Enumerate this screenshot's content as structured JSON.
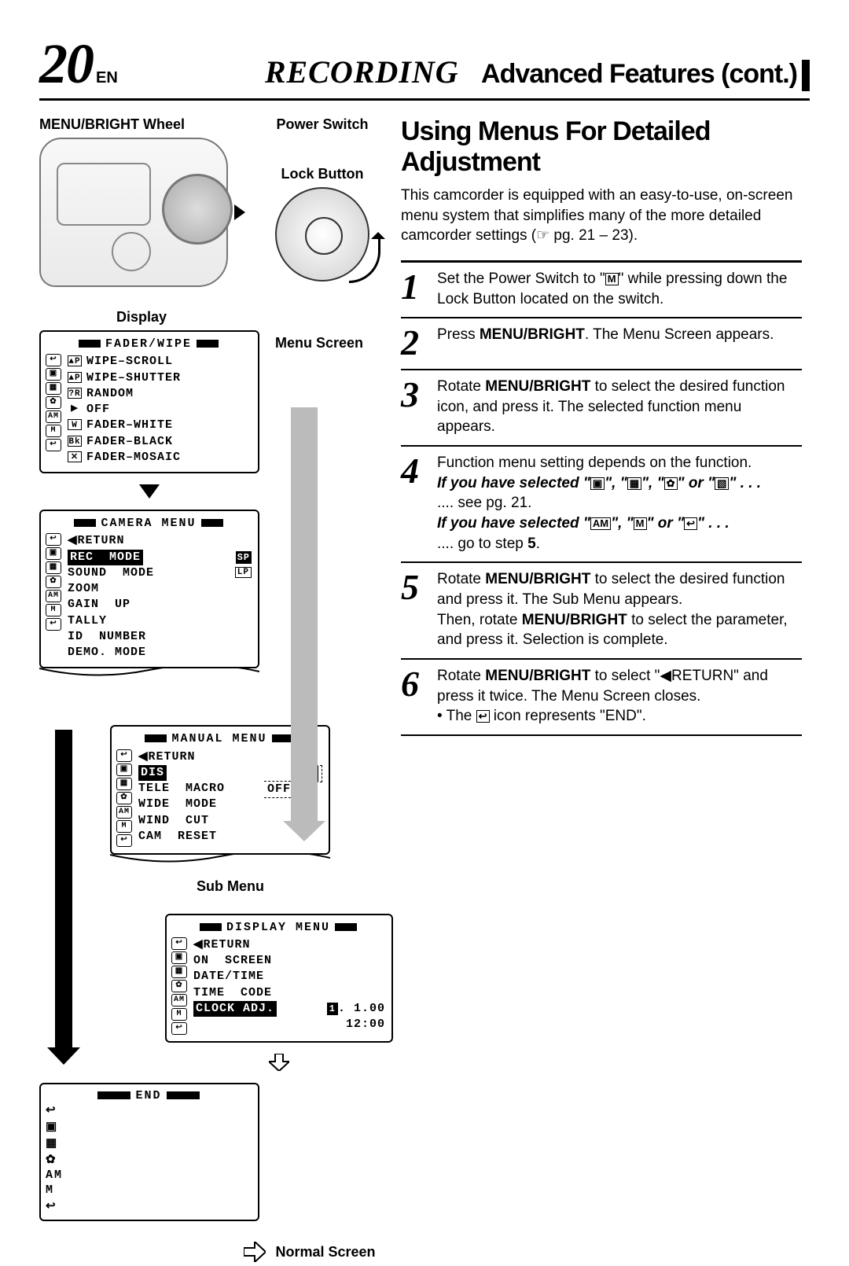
{
  "header": {
    "page_number": "20",
    "lang": "EN",
    "rec": "RECORDING",
    "subtitle": "Advanced Features (cont.)"
  },
  "left": {
    "labels": {
      "menu_bright_wheel": "MENU/BRIGHT Wheel",
      "power_switch": "Power Switch",
      "lock_button": "Lock Button",
      "display": "Display",
      "menu_screen": "Menu Screen",
      "sub_menu": "Sub Menu",
      "normal_screen": "Normal Screen"
    },
    "fader_menu": {
      "title": "FADER/WIPE",
      "items": [
        {
          "glyph": "▲P",
          "label": "WIPE–SCROLL"
        },
        {
          "glyph": "▲P",
          "label": "WIPE–SHUTTER"
        },
        {
          "glyph": "?R",
          "label": "RANDOM"
        },
        {
          "glyph": "▶",
          "label": "OFF",
          "noborder": true
        },
        {
          "glyph": "W",
          "label": "FADER–WHITE"
        },
        {
          "glyph": "Bk",
          "label": "FADER–BLACK"
        },
        {
          "glyph": "✕",
          "label": "FADER–MOSAIC"
        }
      ]
    },
    "camera_menu": {
      "title": "CAMERA  MENU",
      "return": "◀RETURN",
      "items": [
        {
          "label": "REC  MODE",
          "selected": true,
          "val1": "SP",
          "val2": ""
        },
        {
          "label": "SOUND  MODE",
          "val1": "",
          "val2": "LP"
        },
        {
          "label": "ZOOM"
        },
        {
          "label": "GAIN  UP"
        },
        {
          "label": "TALLY"
        },
        {
          "label": "ID  NUMBER"
        },
        {
          "label": "DEMO. MODE"
        }
      ]
    },
    "manual_menu": {
      "title": "MANUAL  MENU",
      "return": "◀RETURN",
      "items": [
        {
          "label": "DIS",
          "selected": true,
          "val": "ON",
          "valsel": true
        },
        {
          "label": "TELE  MACRO",
          "val": "OFF"
        },
        {
          "label": "WIDE  MODE"
        },
        {
          "label": "WIND  CUT"
        },
        {
          "label": "CAM  RESET"
        }
      ]
    },
    "display_menu": {
      "title": "DISPLAY  MENU",
      "return": "◀RETURN",
      "items": [
        {
          "label": "ON  SCREEN"
        },
        {
          "label": "DATE/TIME"
        },
        {
          "label": "TIME  CODE"
        },
        {
          "label": "CLOCK ADJ.",
          "selected": true,
          "val1": "1.  1.00",
          "val2": "12:00"
        }
      ]
    },
    "end_box": {
      "title": "END"
    }
  },
  "right": {
    "section_title": "Using Menus For Detailed Adjustment",
    "intro": "This camcorder is equipped with an easy-to-use, on-screen menu system that simplifies many of the more detailed camcorder settings (☞ pg. 21 – 23).",
    "steps": {
      "s1": "Set the Power Switch to \"Ⓜ\" while pressing down the Lock Button located on the switch.",
      "s2_a": "Press ",
      "s2_b": "MENU/BRIGHT",
      "s2_c": ". The Menu Screen appears.",
      "s3_a": "Rotate ",
      "s3_b": "MENU/BRIGHT",
      "s3_c": " to select the desired function icon, and press it. The selected function menu appears.",
      "s4_a": "Function menu setting depends on the function.",
      "s4_b": "If you have selected \"",
      "s4_c": "\", \"",
      "s4_d": "\" or \"",
      "s4_e": "\" . . .",
      "s4_see": ".... see pg. 21.",
      "s4_go": ".... go to step 5.",
      "s5_a": "Rotate ",
      "s5_b": "MENU/BRIGHT",
      "s5_c": " to select the desired function and press it. The Sub Menu appears.",
      "s5_d": "Then, rotate ",
      "s5_e": "MENU/BRIGHT",
      "s5_f": " to select the parameter, and press it. Selection is complete.",
      "s6_a": "Rotate ",
      "s6_b": "MENU/BRIGHT",
      "s6_c": " to select \"◀RETURN\" and press it twice. The Menu Screen closes.",
      "s6_d": "• The ",
      "s6_e": " icon represents \"END\"."
    }
  },
  "colors": {
    "gray_arrow": "#bbbbbb",
    "black": "#000000"
  }
}
